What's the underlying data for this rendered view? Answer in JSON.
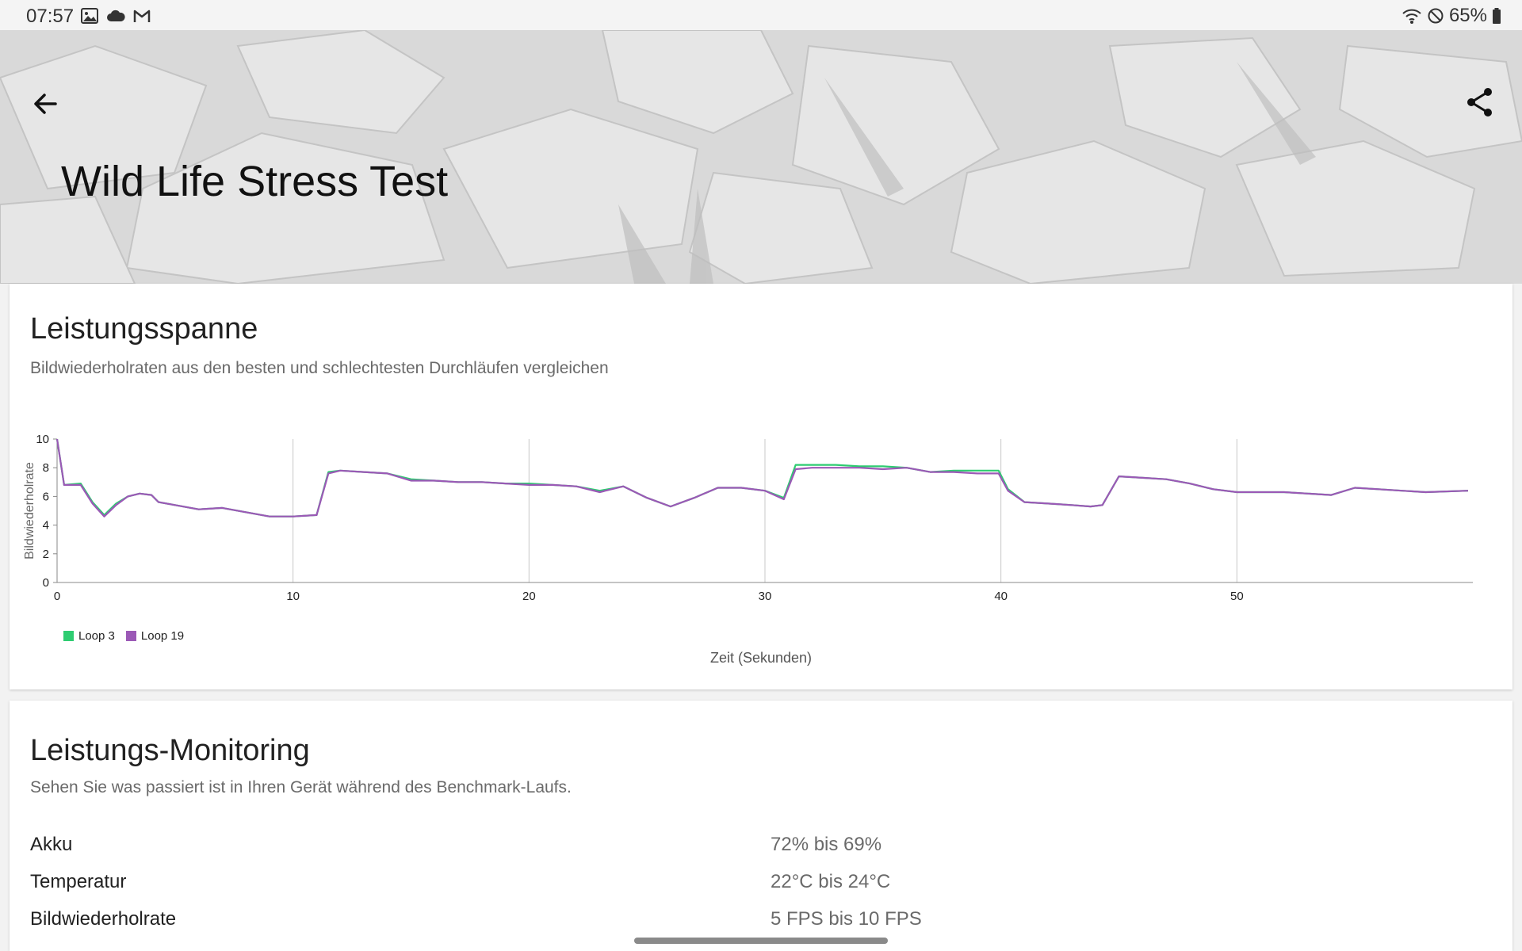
{
  "status_bar": {
    "time": "07:57",
    "left_icons": [
      "gallery-icon",
      "cloud-icon",
      "gmail-icon"
    ],
    "right_icons": [
      "wifi-icon",
      "do-not-disturb-icon",
      "battery-icon"
    ],
    "battery": "65%"
  },
  "header": {
    "title": "Wild Life Stress Test",
    "back_icon": "arrow-back-icon",
    "share_icon": "share-icon"
  },
  "performance_range": {
    "title": "Leistungsspanne",
    "subtitle": "Bildwiederholraten aus den besten und schlechtesten Durchläufen vergleichen"
  },
  "chart_data": {
    "type": "line",
    "xlabel": "Zeit (Sekunden)",
    "ylabel": "Bildwiederholrate",
    "xlim": [
      0,
      60
    ],
    "ylim": [
      0,
      10
    ],
    "xticks": [
      0,
      10,
      20,
      30,
      40,
      50
    ],
    "yticks": [
      0,
      2,
      4,
      6,
      8,
      10
    ],
    "grid": "vertical lines at x ticks",
    "legend": "bottom-left",
    "series": [
      {
        "name": "Loop 3",
        "color": "#2ecc71",
        "x": [
          0,
          0.3,
          1,
          1.5,
          2,
          2.5,
          3,
          3.5,
          4,
          4.3,
          5,
          6,
          7,
          8,
          9,
          10,
          11,
          11.5,
          12,
          13,
          14,
          15,
          16,
          17,
          18,
          19,
          20,
          21,
          22,
          23,
          24,
          25,
          26,
          27,
          28,
          29,
          30,
          30.8,
          31.3,
          32,
          33,
          34,
          35,
          36,
          37,
          38,
          39,
          39.9,
          40.3,
          41,
          42,
          43,
          43.8,
          44.3,
          45,
          46,
          47,
          48,
          49,
          50,
          51,
          52,
          53,
          54,
          55,
          56,
          57,
          58,
          59.8
        ],
        "y": [
          10,
          6.8,
          6.9,
          5.6,
          4.7,
          5.5,
          6,
          6.2,
          6.1,
          5.6,
          5.4,
          5.1,
          5.2,
          4.9,
          4.6,
          4.6,
          4.7,
          7.7,
          7.8,
          7.7,
          7.6,
          7.2,
          7.1,
          7,
          7,
          6.9,
          6.9,
          6.8,
          6.7,
          6.4,
          6.7,
          5.9,
          5.3,
          5.9,
          6.6,
          6.6,
          6.4,
          5.9,
          8.2,
          8.2,
          8.2,
          8.1,
          8.1,
          8,
          7.7,
          7.8,
          7.8,
          7.8,
          6.5,
          5.6,
          5.5,
          5.4,
          5.3,
          5.4,
          7.4,
          7.3,
          7.2,
          6.9,
          6.5,
          6.3,
          6.3,
          6.3,
          6.2,
          6.1,
          6.6,
          6.5,
          6.4,
          6.3,
          6.4
        ]
      },
      {
        "name": "Loop 19",
        "color": "#9b59b6",
        "x": [
          0,
          0.3,
          1,
          1.5,
          2,
          2.5,
          3,
          3.5,
          4,
          4.3,
          5,
          6,
          7,
          8,
          9,
          10,
          11,
          11.5,
          12,
          13,
          14,
          15,
          16,
          17,
          18,
          19,
          20,
          21,
          22,
          23,
          24,
          25,
          26,
          27,
          28,
          29,
          30,
          30.8,
          31.3,
          32,
          33,
          34,
          35,
          36,
          37,
          38,
          39,
          39.9,
          40.3,
          41,
          42,
          43,
          43.8,
          44.3,
          45,
          46,
          47,
          48,
          49,
          50,
          51,
          52,
          53,
          54,
          55,
          56,
          57,
          58,
          59.8
        ],
        "y": [
          10,
          6.8,
          6.8,
          5.5,
          4.6,
          5.4,
          6,
          6.2,
          6.1,
          5.6,
          5.4,
          5.1,
          5.2,
          4.9,
          4.6,
          4.6,
          4.7,
          7.6,
          7.8,
          7.7,
          7.6,
          7.1,
          7.1,
          7,
          7,
          6.9,
          6.8,
          6.8,
          6.7,
          6.3,
          6.7,
          5.9,
          5.3,
          5.9,
          6.6,
          6.6,
          6.4,
          5.8,
          7.9,
          8,
          8,
          8,
          7.9,
          8,
          7.7,
          7.7,
          7.6,
          7.6,
          6.4,
          5.6,
          5.5,
          5.4,
          5.3,
          5.4,
          7.4,
          7.3,
          7.2,
          6.9,
          6.5,
          6.3,
          6.3,
          6.3,
          6.2,
          6.1,
          6.6,
          6.5,
          6.4,
          6.3,
          6.4
        ]
      }
    ]
  },
  "performance_monitoring": {
    "title": "Leistungs-Monitoring",
    "subtitle": "Sehen Sie was passiert ist in Ihren Gerät während des Benchmark-Laufs.",
    "rows": [
      {
        "label": "Akku",
        "value": "72% bis 69%"
      },
      {
        "label": "Temperatur",
        "value": "22°C bis 24°C"
      },
      {
        "label": "Bildwiederholrate",
        "value": "5 FPS bis 10 FPS"
      }
    ]
  }
}
